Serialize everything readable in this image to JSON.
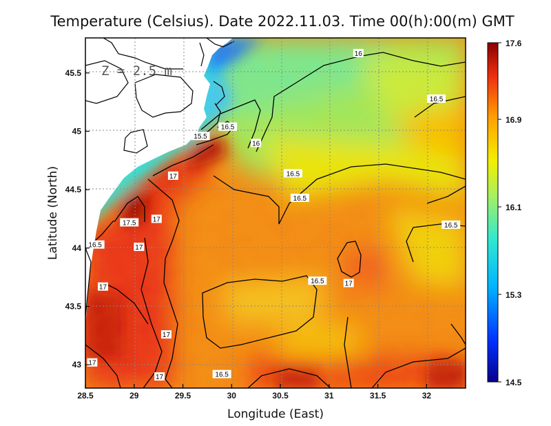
{
  "chart_data": {
    "type": "heatmap",
    "title": "Temperature (Celsius). Date 2022.11.03. Time 00(h):00(m) GMT",
    "xlabel": "Longitude (East)",
    "ylabel": "Latitude (North)",
    "annotation": "Z = 2.5 m",
    "xlim": [
      28.5,
      32.4
    ],
    "ylim": [
      42.8,
      45.8
    ],
    "xticks": [
      "28.5",
      "29",
      "29.5",
      "30",
      "30.5",
      "31",
      "31.5",
      "32"
    ],
    "yticks": [
      "43",
      "43.5",
      "44",
      "44.5",
      "45",
      "45.5"
    ],
    "grid": true,
    "colorbar": {
      "min": 14.5,
      "max": 17.6,
      "ticks": [
        "14.5",
        "15.3",
        "16.1",
        "16.9",
        "17.6"
      ],
      "colors": [
        "#08008c",
        "#0040ff",
        "#00c8ff",
        "#7fe87a",
        "#f7f000",
        "#ff8a00",
        "#e8180c",
        "#8c0000"
      ]
    },
    "contour_labels": [
      {
        "text": "16",
        "lon": 30.25,
        "lat": 44.9
      },
      {
        "text": "16",
        "lon": 31.3,
        "lat": 45.67
      },
      {
        "text": "15.5",
        "lon": 29.68,
        "lat": 44.96
      },
      {
        "text": "16.5",
        "lon": 29.96,
        "lat": 45.04
      },
      {
        "text": "16.5",
        "lon": 32.1,
        "lat": 45.28
      },
      {
        "text": "16.5",
        "lon": 30.63,
        "lat": 44.64
      },
      {
        "text": "16.5",
        "lon": 30.7,
        "lat": 44.43
      },
      {
        "text": "16.5",
        "lon": 32.25,
        "lat": 44.2
      },
      {
        "text": "16.5",
        "lon": 28.6,
        "lat": 44.03
      },
      {
        "text": "16.5",
        "lon": 30.88,
        "lat": 43.72
      },
      {
        "text": "16.5",
        "lon": 29.9,
        "lat": 42.92
      },
      {
        "text": "17",
        "lon": 29.4,
        "lat": 44.62
      },
      {
        "text": "17",
        "lon": 29.23,
        "lat": 44.25
      },
      {
        "text": "17.5",
        "lon": 28.95,
        "lat": 44.22
      },
      {
        "text": "17",
        "lon": 29.05,
        "lat": 44.01
      },
      {
        "text": "17",
        "lon": 28.68,
        "lat": 43.67
      },
      {
        "text": "17",
        "lon": 29.33,
        "lat": 43.26
      },
      {
        "text": "17",
        "lon": 28.57,
        "lat": 43.02
      },
      {
        "text": "17",
        "lon": 29.26,
        "lat": 42.9
      },
      {
        "text": "17",
        "lon": 31.2,
        "lat": 43.7
      }
    ]
  }
}
